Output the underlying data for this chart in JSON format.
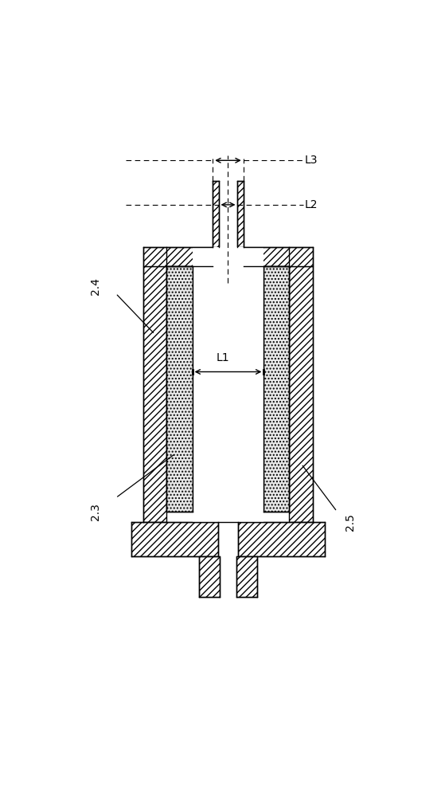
{
  "background_color": "#ffffff",
  "label_24": "2.4",
  "label_23": "2.3",
  "label_25": "2.5",
  "label_L1": "L1",
  "label_L2": "L2",
  "label_L3": "L3",
  "fig_width": 5.59,
  "fig_height": 10.0,
  "lw": 1.0,
  "hatch_dense": "////",
  "hatch_dot": "....",
  "ec": "#000000",
  "fc_hatch": "#ffffff",
  "fc_dot": "#e8e8e8"
}
